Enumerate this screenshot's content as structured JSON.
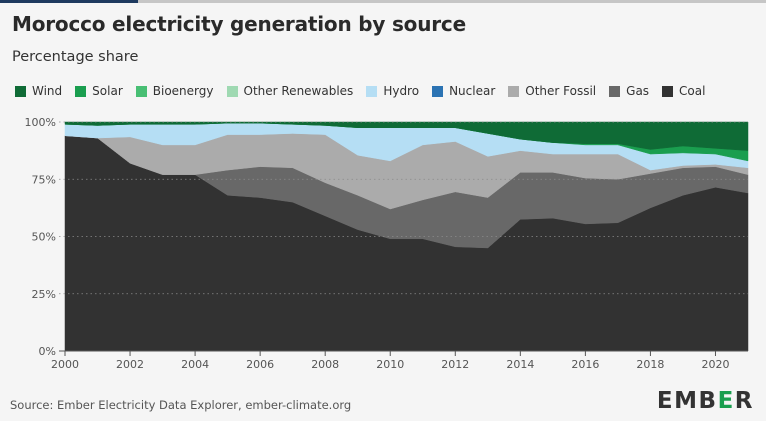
{
  "title": "Morocco electricity generation by source",
  "subtitle": "Percentage share",
  "source": "Source: Ember Electricity Data Explorer, ember-climate.org",
  "brand": {
    "logo_text": "EMBER",
    "logo_accent_color": "#1a9e4f"
  },
  "colors": {
    "background": "#f5f5f5",
    "top_bar": "#c6c6c6",
    "top_bar_accent": "#1e3a5f"
  },
  "legend": [
    {
      "label": "Wind",
      "color": "#0f6b36"
    },
    {
      "label": "Solar",
      "color": "#1a9e4f"
    },
    {
      "label": "Bioenergy",
      "color": "#48bf74"
    },
    {
      "label": "Other Renewables",
      "color": "#9fd9b2"
    },
    {
      "label": "Hydro",
      "color": "#b5def4"
    },
    {
      "label": "Nuclear",
      "color": "#2b73b3"
    },
    {
      "label": "Other Fossil",
      "color": "#ababab"
    },
    {
      "label": "Gas",
      "color": "#686868"
    },
    {
      "label": "Coal",
      "color": "#323232"
    }
  ],
  "chart_data": {
    "type": "area",
    "stacked": true,
    "title": "Morocco electricity generation by source",
    "subtitle": "Percentage share",
    "x": [
      2000,
      2001,
      2002,
      2003,
      2004,
      2005,
      2006,
      2007,
      2008,
      2009,
      2010,
      2011,
      2012,
      2013,
      2014,
      2015,
      2016,
      2017,
      2018,
      2019,
      2020,
      2021
    ],
    "x_ticks": [
      "2000",
      "2002",
      "2004",
      "2006",
      "2008",
      "2010",
      "2012",
      "2014",
      "2016",
      "2018",
      "2020"
    ],
    "y_ticks": [
      "0%",
      "25%",
      "50%",
      "75%",
      "100%"
    ],
    "ylim": [
      0,
      100
    ],
    "grid": true,
    "legend_position": "top",
    "series": [
      {
        "name": "Coal",
        "color": "#323232",
        "values": [
          94,
          93,
          82,
          77,
          77,
          68,
          67,
          65,
          59,
          53,
          49,
          49,
          45.5,
          45,
          57.5,
          58,
          55.5,
          56,
          62.5,
          68,
          71.5,
          69
        ]
      },
      {
        "name": "Gas",
        "color": "#686868",
        "values": [
          0,
          0,
          0,
          0,
          0,
          11,
          13.5,
          15,
          14.5,
          15,
          13,
          17,
          24,
          22,
          20.5,
          20,
          20,
          19,
          15,
          12,
          9,
          8
        ]
      },
      {
        "name": "Other Fossil",
        "color": "#ababab",
        "values": [
          0,
          0,
          11.5,
          13,
          13,
          15.5,
          14,
          15,
          21,
          17.5,
          21,
          24,
          22,
          18,
          9.5,
          8,
          10.5,
          11,
          1.5,
          1,
          1,
          3
        ]
      },
      {
        "name": "Hydro",
        "color": "#b5def4",
        "values": [
          5,
          5.5,
          5.5,
          9,
          9,
          5,
          5,
          4,
          4,
          12,
          14.5,
          7.5,
          6,
          10,
          5,
          5,
          4,
          4,
          7,
          5.5,
          4.5,
          3
        ]
      },
      {
        "name": "Nuclear",
        "color": "#2b73b3",
        "values": [
          0,
          0,
          0,
          0,
          0,
          0,
          0,
          0,
          0,
          0,
          0,
          0,
          0,
          0,
          0,
          0,
          0,
          0,
          0,
          0,
          0,
          0
        ]
      },
      {
        "name": "Other Renewables",
        "color": "#9fd9b2",
        "values": [
          0,
          0,
          0,
          0,
          0,
          0,
          0,
          0,
          0,
          0,
          0,
          0,
          0,
          0,
          0,
          0,
          0,
          0,
          0,
          0,
          0,
          0
        ]
      },
      {
        "name": "Bioenergy",
        "color": "#48bf74",
        "values": [
          0,
          0,
          0,
          0,
          0,
          0,
          0,
          0,
          0,
          0,
          0,
          0,
          0,
          0,
          0,
          0,
          0,
          0,
          0,
          0,
          0,
          0
        ]
      },
      {
        "name": "Solar",
        "color": "#1a9e4f",
        "values": [
          0,
          0,
          0,
          0,
          0,
          0,
          0,
          0,
          0,
          0,
          0,
          0,
          0,
          0,
          0,
          0,
          0.5,
          0.5,
          2,
          3,
          2.5,
          4.5
        ]
      },
      {
        "name": "Wind",
        "color": "#0f6b36",
        "values": [
          1,
          1.5,
          1,
          1,
          1,
          0.5,
          0.5,
          1,
          1.5,
          2.5,
          2.5,
          2.5,
          2.5,
          5,
          7.5,
          9,
          9.5,
          9.5,
          12,
          10.5,
          11.5,
          12.5
        ]
      }
    ]
  }
}
